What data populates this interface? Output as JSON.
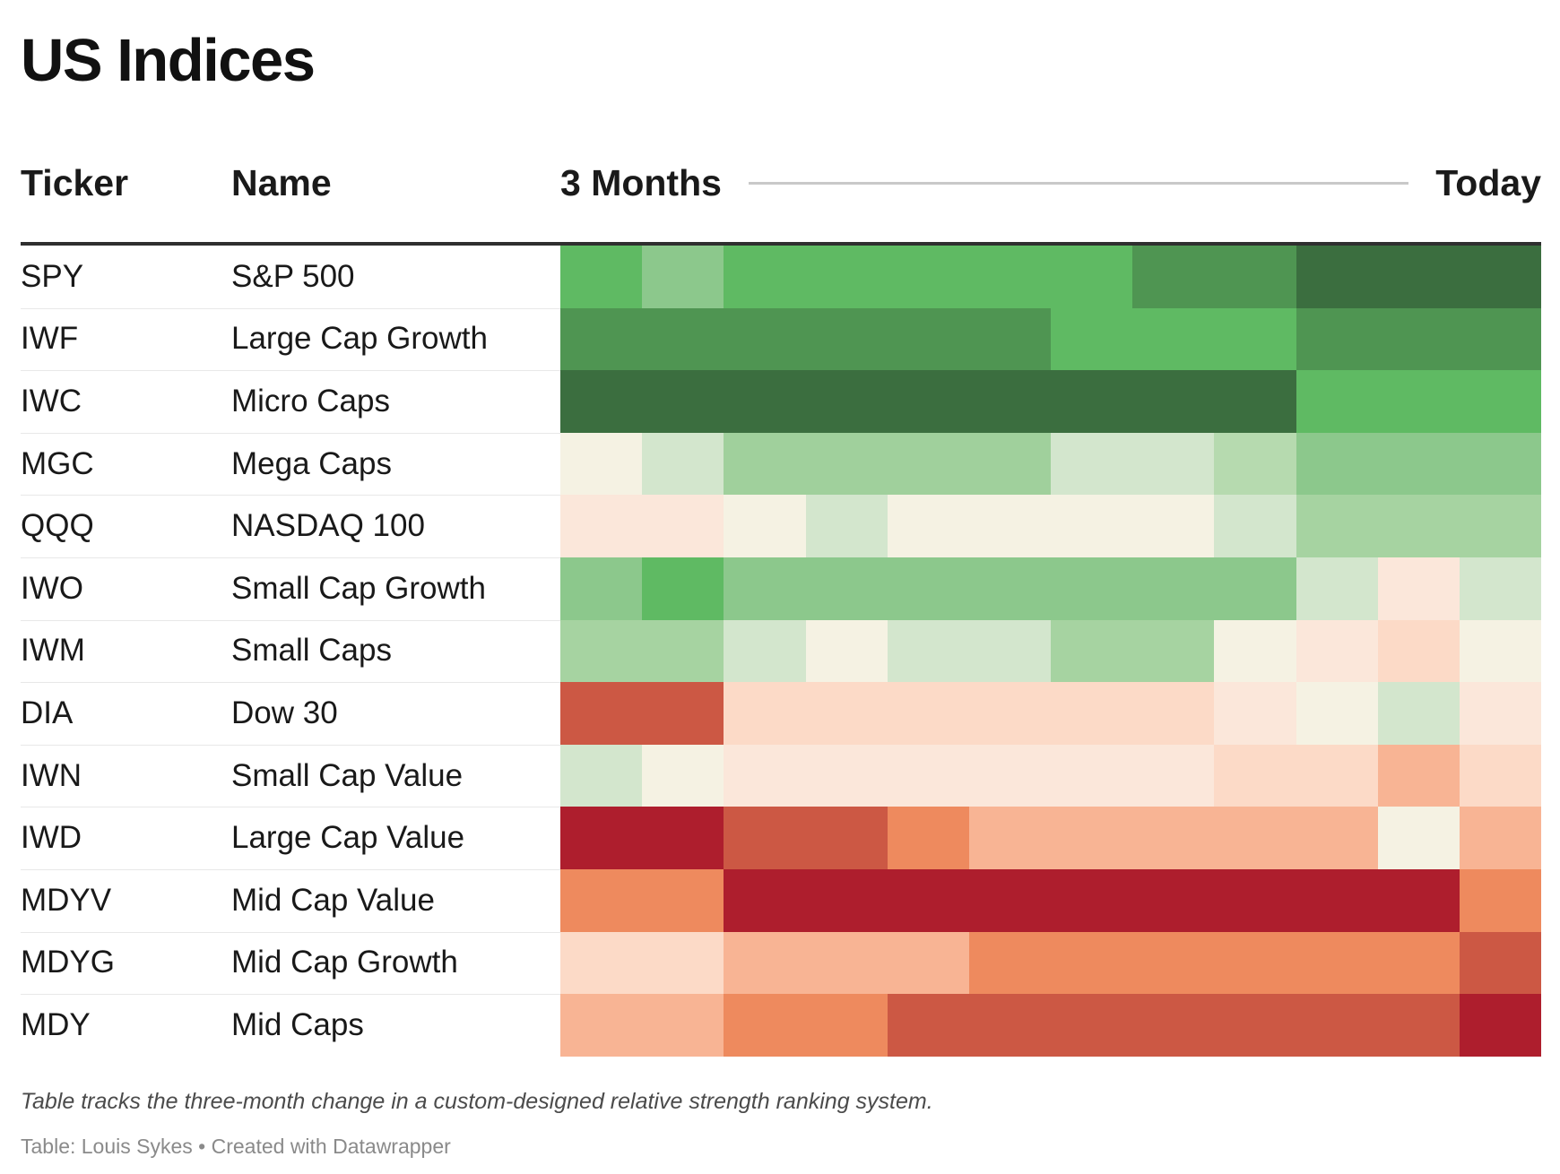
{
  "title": "US Indices",
  "header": {
    "ticker": "Ticker",
    "name": "Name",
    "period_start": "3 Months",
    "period_end": "Today"
  },
  "footnote": "Table tracks the three-month change in a custom-designed relative strength ranking system.",
  "credit": "Table: Louis Sykes • Created with Datawrapper",
  "chart_data": {
    "type": "heatmap",
    "title": "US Indices",
    "x_axis": {
      "start_label": "3 Months",
      "end_label": "Today",
      "steps": 12,
      "unit": "time from 3 months ago to today"
    },
    "legend": "Diverging color scale of relative strength rank: dark green = strongest, cream = neutral, dark red = weakest",
    "palette": {
      "green_dark": "#3b6e3f",
      "green_medium_dark": "#4f9552",
      "green_medium": "#5fba63",
      "green_light_medium": "#8cc88c",
      "green_light": "#a6d3a1",
      "green_lighter": "#b6daaf",
      "green_pale": "#d3e6cd",
      "neutral_cream": "#f5f2e3",
      "red_pale": "#fbe7da",
      "red_light": "#fcdac7",
      "red_salmon": "#f8b494",
      "red_orange": "#ee8a5e",
      "red_medium": "#cc5844",
      "red_dark": "#ae1e2d"
    },
    "rows": [
      {
        "ticker": "SPY",
        "name": "S&P 500",
        "colors": [
          "#5fba63",
          "#8cc88c",
          "#5fba63",
          "#5fba63",
          "#5fba63",
          "#5fba63",
          "#5fba63",
          "#4f9552",
          "#4f9552",
          "#3b6e3f",
          "#3b6e3f",
          "#3b6e3f"
        ]
      },
      {
        "ticker": "IWF",
        "name": "Large Cap Growth",
        "colors": [
          "#4f9552",
          "#4f9552",
          "#4f9552",
          "#4f9552",
          "#4f9552",
          "#4f9552",
          "#5fba63",
          "#5fba63",
          "#5fba63",
          "#4f9552",
          "#4f9552",
          "#4f9552"
        ]
      },
      {
        "ticker": "IWC",
        "name": "Micro Caps",
        "colors": [
          "#3b6e3f",
          "#3b6e3f",
          "#3b6e3f",
          "#3b6e3f",
          "#3b6e3f",
          "#3b6e3f",
          "#3b6e3f",
          "#3b6e3f",
          "#3b6e3f",
          "#5fba63",
          "#5fba63",
          "#5fba63"
        ]
      },
      {
        "ticker": "MGC",
        "name": "Mega Caps",
        "colors": [
          "#f5f2e3",
          "#d3e6cd",
          "#a0d09c",
          "#a0d09c",
          "#a0d09c",
          "#a0d09c",
          "#d3e6cd",
          "#d3e6cd",
          "#b6daaf",
          "#8cc88c",
          "#8cc88c",
          "#8cc88c"
        ]
      },
      {
        "ticker": "QQQ",
        "name": "NASDAQ 100",
        "colors": [
          "#fbe7da",
          "#fbe7da",
          "#f5f2e3",
          "#d3e6cd",
          "#f5f2e3",
          "#f5f2e3",
          "#f5f2e3",
          "#f5f2e3",
          "#d3e6cd",
          "#a6d3a1",
          "#a6d3a1",
          "#a6d3a1"
        ]
      },
      {
        "ticker": "IWO",
        "name": "Small Cap Growth",
        "colors": [
          "#8cc88c",
          "#5fba63",
          "#8cc88c",
          "#8cc88c",
          "#8cc88c",
          "#8cc88c",
          "#8cc88c",
          "#8cc88c",
          "#8cc88c",
          "#d3e6cd",
          "#fbe7da",
          "#d3e6cd"
        ]
      },
      {
        "ticker": "IWM",
        "name": "Small Caps",
        "colors": [
          "#a6d3a1",
          "#a6d3a1",
          "#d3e6cd",
          "#f5f2e3",
          "#d3e6cd",
          "#d3e6cd",
          "#a6d3a1",
          "#a6d3a1",
          "#f5f2e3",
          "#fbe7da",
          "#fcdac7",
          "#f5f2e3"
        ]
      },
      {
        "ticker": "DIA",
        "name": "Dow 30",
        "colors": [
          "#cc5844",
          "#cc5844",
          "#fcdac7",
          "#fcdac7",
          "#fcdac7",
          "#fcdac7",
          "#fcdac7",
          "#fcdac7",
          "#fbe7da",
          "#f5f2e3",
          "#d3e6cd",
          "#fbe7da"
        ]
      },
      {
        "ticker": "IWN",
        "name": "Small Cap Value",
        "colors": [
          "#d3e6cd",
          "#f5f2e3",
          "#fbe7da",
          "#fbe7da",
          "#fbe7da",
          "#fbe7da",
          "#fbe7da",
          "#fbe7da",
          "#fcdac7",
          "#fcdac7",
          "#f8b494",
          "#fcdac7"
        ]
      },
      {
        "ticker": "IWD",
        "name": "Large Cap Value",
        "colors": [
          "#ae1e2d",
          "#ae1e2d",
          "#cc5844",
          "#cc5844",
          "#ee8a5e",
          "#f8b494",
          "#f8b494",
          "#f8b494",
          "#f8b494",
          "#f8b494",
          "#f5f2e3",
          "#f8b494"
        ]
      },
      {
        "ticker": "MDYV",
        "name": "Mid Cap Value",
        "colors": [
          "#ee8a5e",
          "#ee8a5e",
          "#ae1e2d",
          "#ae1e2d",
          "#ae1e2d",
          "#ae1e2d",
          "#ae1e2d",
          "#ae1e2d",
          "#ae1e2d",
          "#ae1e2d",
          "#ae1e2d",
          "#ee8a5e"
        ]
      },
      {
        "ticker": "MDYG",
        "name": "Mid Cap Growth",
        "colors": [
          "#fcdac7",
          "#fcdac7",
          "#f8b494",
          "#f8b494",
          "#f8b494",
          "#ee8a5e",
          "#ee8a5e",
          "#ee8a5e",
          "#ee8a5e",
          "#ee8a5e",
          "#ee8a5e",
          "#cc5844"
        ]
      },
      {
        "ticker": "MDY",
        "name": "Mid Caps",
        "colors": [
          "#f8b494",
          "#f8b494",
          "#ee8a5e",
          "#ee8a5e",
          "#cc5844",
          "#cc5844",
          "#cc5844",
          "#cc5844",
          "#cc5844",
          "#cc5844",
          "#cc5844",
          "#ae1e2d"
        ]
      }
    ]
  }
}
